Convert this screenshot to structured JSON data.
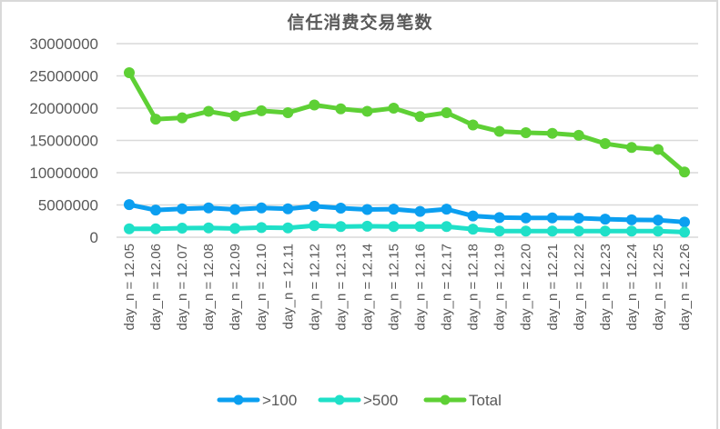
{
  "chart_data": {
    "type": "line",
    "title": "信任消费交易笔数",
    "xlabel": "",
    "ylabel": "",
    "ylim": [
      0,
      30000000
    ],
    "yticks": [
      0,
      5000000,
      10000000,
      15000000,
      20000000,
      25000000,
      30000000
    ],
    "ytick_labels": [
      "0",
      "5000000",
      "10000000",
      "15000000",
      "20000000",
      "25000000",
      "30000000"
    ],
    "grid": "horizontal",
    "legend_position": "bottom",
    "categories": [
      "day_n = 12.05",
      "day_n = 12.06",
      "day_n = 12.07",
      "day_n = 12.08",
      "day_n = 12.09",
      "day_n = 12.10",
      "day_n = 12.11",
      "day_n = 12.12",
      "day_n = 12.13",
      "day_n = 12.14",
      "day_n = 12.15",
      "day_n = 12.16",
      "day_n = 12.17",
      "day_n = 12.18",
      "day_n = 12.19",
      "day_n = 12.20",
      "day_n = 12.21",
      "day_n = 12.22",
      "day_n = 12.23",
      "day_n = 12.24",
      "day_n = 12.25",
      "day_n = 12.26"
    ],
    "series": [
      {
        "name": ">100",
        "color": "#0b9ff0",
        "values": [
          5050000,
          4200000,
          4400000,
          4550000,
          4300000,
          4550000,
          4400000,
          4800000,
          4500000,
          4300000,
          4350000,
          4000000,
          4350000,
          3300000,
          3050000,
          3000000,
          3000000,
          2950000,
          2800000,
          2700000,
          2650000,
          2350000
        ]
      },
      {
        "name": ">500",
        "color": "#1fe0c8",
        "values": [
          1300000,
          1300000,
          1400000,
          1450000,
          1350000,
          1500000,
          1450000,
          1800000,
          1650000,
          1700000,
          1650000,
          1650000,
          1650000,
          1250000,
          950000,
          950000,
          950000,
          950000,
          950000,
          950000,
          950000,
          800000
        ]
      },
      {
        "name": "Total",
        "color": "#5ed035",
        "values": [
          25500000,
          18300000,
          18500000,
          19500000,
          18800000,
          19600000,
          19300000,
          20500000,
          19900000,
          19500000,
          20000000,
          18700000,
          19300000,
          17400000,
          16400000,
          16200000,
          16100000,
          15800000,
          14500000,
          13900000,
          13600000,
          10100000
        ]
      }
    ]
  },
  "colors": {
    "gridline": "#d9d9d9",
    "text": "#595959",
    "frame": "#d9d9d9"
  }
}
